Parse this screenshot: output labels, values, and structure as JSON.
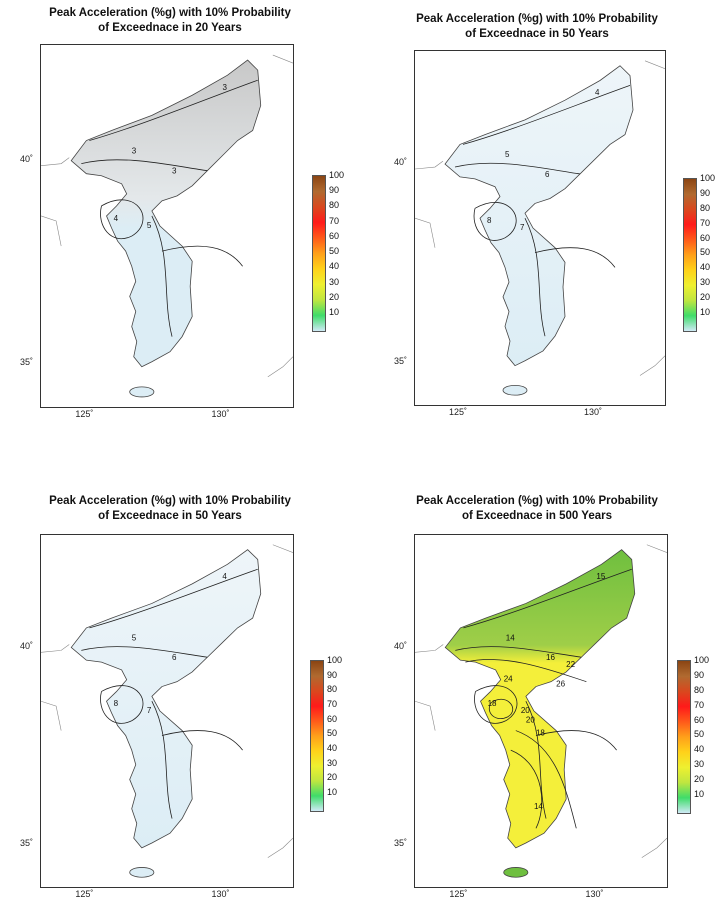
{
  "panels": [
    {
      "title_line1": "Peak Acceleration (%g) with 10% Probability",
      "title_line2": "of Exceednace in  20 Years",
      "contour_labels": [
        "3",
        "3",
        "3",
        "4",
        "5"
      ],
      "fill_style": "gray"
    },
    {
      "title_line1": "Peak Acceleration (%g) with 10% Probability",
      "title_line2": "of Exceednace in  50 Years",
      "contour_labels": [
        "4",
        "5",
        "6",
        "8",
        "7"
      ],
      "fill_style": "blue"
    },
    {
      "title_line1": "Peak Acceleration (%g) with 10% Probability",
      "title_line2": "of Exceednace in  50 Years",
      "contour_labels": [
        "4",
        "5",
        "6",
        "8",
        "7"
      ],
      "fill_style": "blue"
    },
    {
      "title_line1": "Peak Acceleration (%g) with 10% Probability",
      "title_line2": "of Exceednace in  500 Years",
      "contour_labels": [
        "15",
        "14",
        "16",
        "18",
        "20",
        "22",
        "26",
        "24",
        "20",
        "18",
        "14"
      ],
      "fill_style": "green-yellow"
    }
  ],
  "lat_labels": [
    "40˚",
    "35˚"
  ],
  "lon_labels": [
    "125˚",
    "130˚"
  ],
  "legend_ticks": [
    "100",
    "90",
    "80",
    "70",
    "60",
    "50",
    "40",
    "30",
    "20",
    "10"
  ],
  "colors": {
    "gray": "#c8c8c8",
    "light_blue": "#dcedf5",
    "green": "#6fbf3f",
    "yellow": "#f4ef3a",
    "legend_stops": [
      "#8b4513",
      "#b06a30",
      "#d9481e",
      "#ff1a1a",
      "#ff5a1a",
      "#ffa01a",
      "#ffd21a",
      "#eef030",
      "#bfe640",
      "#3fdc6a",
      "#cfeaf6"
    ]
  }
}
